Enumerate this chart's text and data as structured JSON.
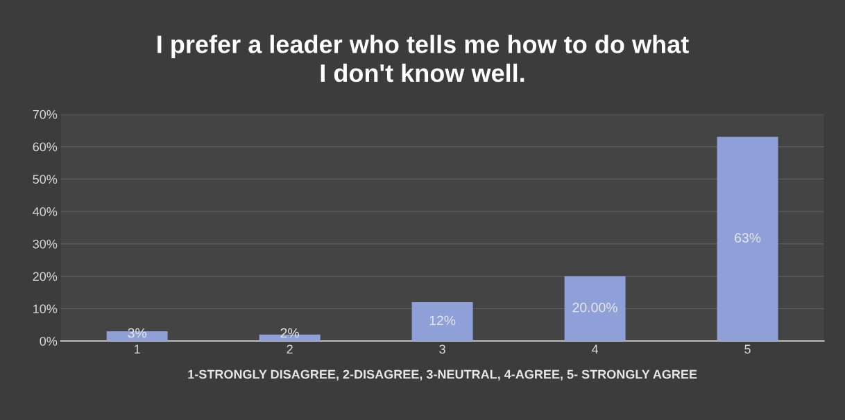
{
  "chart_data": {
    "type": "bar",
    "title": "I prefer a leader who tells me how to do what\nI don't know well.",
    "xlabel": "1-STRONGLY DISAGREE, 2-DISAGREE, 3-NEUTRAL, 4-AGREE, 5- STRONGLY AGREE",
    "categories": [
      "1",
      "2",
      "3",
      "4",
      "5"
    ],
    "values": [
      3,
      2,
      12,
      20,
      63
    ],
    "value_labels": [
      "3%",
      "2%",
      "12%",
      "20.00%",
      "63%"
    ],
    "color": "#8fa0d8",
    "ylim": [
      0,
      70
    ],
    "yticks": [
      {
        "value": 0,
        "label": "0%"
      },
      {
        "value": 10,
        "label": "10%"
      },
      {
        "value": 20,
        "label": "20%"
      },
      {
        "value": 30,
        "label": "30%"
      },
      {
        "value": 40,
        "label": "40%"
      },
      {
        "value": 50,
        "label": "50%"
      },
      {
        "value": 60,
        "label": "60%"
      },
      {
        "value": 70,
        "label": "70%"
      }
    ],
    "grid": "y"
  }
}
